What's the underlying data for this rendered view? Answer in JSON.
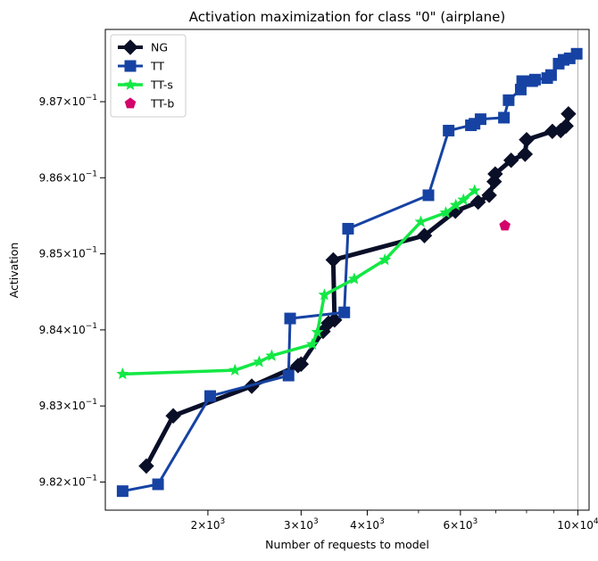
{
  "chart_data": {
    "type": "line",
    "title": "Activation maximization for class \"0\" (airplane)",
    "xlabel": "Number of requests to model",
    "ylabel": "Activation",
    "xscale": "log",
    "xlim": [
      1280,
      10500
    ],
    "ylim": [
      0.98163,
      0.98795
    ],
    "x_ticks": [
      {
        "value": 2000,
        "base": "2",
        "exp": "3"
      },
      {
        "value": 3000,
        "base": "3",
        "exp": "3"
      },
      {
        "value": 4000,
        "base": "4",
        "exp": "3"
      },
      {
        "value": 6000,
        "base": "6",
        "exp": "3"
      },
      {
        "value": 10000,
        "base": "10",
        "exp": "4"
      }
    ],
    "x_minor_ticks": [
      5000,
      7000,
      8000,
      9000
    ],
    "y_ticks": [
      {
        "value": 0.982,
        "mantissa": "9.82",
        "exp": "−1"
      },
      {
        "value": 0.983,
        "mantissa": "9.83",
        "exp": "−1"
      },
      {
        "value": 0.984,
        "mantissa": "9.84",
        "exp": "−1"
      },
      {
        "value": 0.985,
        "mantissa": "9.85",
        "exp": "−1"
      },
      {
        "value": 0.986,
        "mantissa": "9.86",
        "exp": "−1"
      },
      {
        "value": 0.987,
        "mantissa": "9.87",
        "exp": "−1"
      }
    ],
    "vline_x": 10000,
    "legend_position": "upper left",
    "grid": false,
    "series": [
      {
        "name": "NG",
        "color": "#0a0f28",
        "marker": "diamond",
        "line_width": 5,
        "points": [
          [
            1530,
            0.98221
          ],
          [
            1720,
            0.98287
          ],
          [
            2420,
            0.98326
          ],
          [
            2960,
            0.98353
          ],
          [
            3000,
            0.98355
          ],
          [
            3300,
            0.98398
          ],
          [
            3380,
            0.98409
          ],
          [
            3470,
            0.98413
          ],
          [
            3450,
            0.98492
          ],
          [
            5130,
            0.98524
          ],
          [
            5870,
            0.98556
          ],
          [
            6480,
            0.98568
          ],
          [
            6800,
            0.98577
          ],
          [
            6950,
            0.98595
          ],
          [
            6980,
            0.98605
          ],
          [
            7480,
            0.98623
          ],
          [
            7950,
            0.98631
          ],
          [
            8000,
            0.9865
          ],
          [
            8950,
            0.98661
          ],
          [
            9280,
            0.98662
          ],
          [
            9500,
            0.98668
          ],
          [
            9600,
            0.98684
          ]
        ]
      },
      {
        "name": "TT",
        "color": "#1643a3",
        "marker": "square",
        "line_width": 3,
        "points": [
          [
            1380,
            0.98188
          ],
          [
            1610,
            0.98197
          ],
          [
            2020,
            0.98313
          ],
          [
            2840,
            0.9834
          ],
          [
            2860,
            0.98415
          ],
          [
            3620,
            0.98423
          ],
          [
            3680,
            0.98533
          ],
          [
            5220,
            0.98577
          ],
          [
            5700,
            0.98662
          ],
          [
            6280,
            0.98669
          ],
          [
            6380,
            0.98671
          ],
          [
            6550,
            0.98677
          ],
          [
            7250,
            0.98679
          ],
          [
            7400,
            0.98702
          ],
          [
            7800,
            0.98716
          ],
          [
            7850,
            0.98727
          ],
          [
            8200,
            0.98727
          ],
          [
            8300,
            0.98729
          ],
          [
            8750,
            0.98731
          ],
          [
            8900,
            0.98735
          ],
          [
            9200,
            0.9875
          ],
          [
            9400,
            0.98755
          ],
          [
            9650,
            0.98757
          ],
          [
            9950,
            0.98763
          ]
        ]
      },
      {
        "name": "TT-s",
        "color": "#14e845",
        "marker": "star",
        "line_width": 3.5,
        "points": [
          [
            1380,
            0.98342
          ],
          [
            2250,
            0.98347
          ],
          [
            2500,
            0.98358
          ],
          [
            2640,
            0.98366
          ],
          [
            3150,
            0.98381
          ],
          [
            3220,
            0.98397
          ],
          [
            3320,
            0.98446
          ],
          [
            3780,
            0.98467
          ],
          [
            4320,
            0.98492
          ],
          [
            5050,
            0.98542
          ],
          [
            5630,
            0.98554
          ],
          [
            5880,
            0.98564
          ],
          [
            6080,
            0.98571
          ],
          [
            6380,
            0.98583
          ]
        ]
      },
      {
        "name": "TT-b",
        "color": "#d3046a",
        "marker": "pentagon",
        "line_width": 0,
        "points": [
          [
            7280,
            0.98537
          ]
        ]
      }
    ]
  }
}
